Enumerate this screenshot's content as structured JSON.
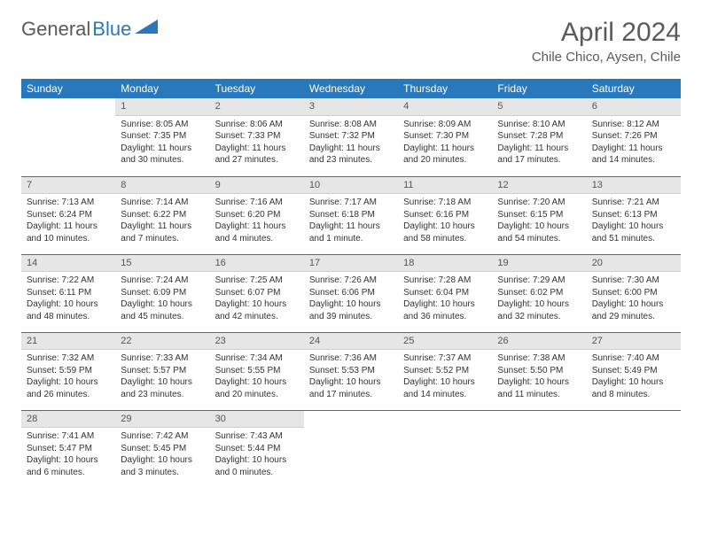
{
  "brand": {
    "part1": "General",
    "part2": "Blue"
  },
  "title": "April 2024",
  "location": "Chile Chico, Aysen, Chile",
  "colors": {
    "header_bg": "#2a78bc",
    "header_text": "#ffffff",
    "daynum_bg": "#e6e6e6",
    "text": "#333333",
    "brand_gray": "#5a5a5a",
    "brand_blue": "#2a78bc",
    "row_sep": "#2a78bc",
    "page_bg": "#ffffff"
  },
  "weekday_labels": [
    "Sunday",
    "Monday",
    "Tuesday",
    "Wednesday",
    "Thursday",
    "Friday",
    "Saturday"
  ],
  "weeks": [
    [
      null,
      {
        "n": "1",
        "sr": "8:05 AM",
        "ss": "7:35 PM",
        "dl": "11 hours and 30 minutes."
      },
      {
        "n": "2",
        "sr": "8:06 AM",
        "ss": "7:33 PM",
        "dl": "11 hours and 27 minutes."
      },
      {
        "n": "3",
        "sr": "8:08 AM",
        "ss": "7:32 PM",
        "dl": "11 hours and 23 minutes."
      },
      {
        "n": "4",
        "sr": "8:09 AM",
        "ss": "7:30 PM",
        "dl": "11 hours and 20 minutes."
      },
      {
        "n": "5",
        "sr": "8:10 AM",
        "ss": "7:28 PM",
        "dl": "11 hours and 17 minutes."
      },
      {
        "n": "6",
        "sr": "8:12 AM",
        "ss": "7:26 PM",
        "dl": "11 hours and 14 minutes."
      }
    ],
    [
      {
        "n": "7",
        "sr": "7:13 AM",
        "ss": "6:24 PM",
        "dl": "11 hours and 10 minutes."
      },
      {
        "n": "8",
        "sr": "7:14 AM",
        "ss": "6:22 PM",
        "dl": "11 hours and 7 minutes."
      },
      {
        "n": "9",
        "sr": "7:16 AM",
        "ss": "6:20 PM",
        "dl": "11 hours and 4 minutes."
      },
      {
        "n": "10",
        "sr": "7:17 AM",
        "ss": "6:18 PM",
        "dl": "11 hours and 1 minute."
      },
      {
        "n": "11",
        "sr": "7:18 AM",
        "ss": "6:16 PM",
        "dl": "10 hours and 58 minutes."
      },
      {
        "n": "12",
        "sr": "7:20 AM",
        "ss": "6:15 PM",
        "dl": "10 hours and 54 minutes."
      },
      {
        "n": "13",
        "sr": "7:21 AM",
        "ss": "6:13 PM",
        "dl": "10 hours and 51 minutes."
      }
    ],
    [
      {
        "n": "14",
        "sr": "7:22 AM",
        "ss": "6:11 PM",
        "dl": "10 hours and 48 minutes."
      },
      {
        "n": "15",
        "sr": "7:24 AM",
        "ss": "6:09 PM",
        "dl": "10 hours and 45 minutes."
      },
      {
        "n": "16",
        "sr": "7:25 AM",
        "ss": "6:07 PM",
        "dl": "10 hours and 42 minutes."
      },
      {
        "n": "17",
        "sr": "7:26 AM",
        "ss": "6:06 PM",
        "dl": "10 hours and 39 minutes."
      },
      {
        "n": "18",
        "sr": "7:28 AM",
        "ss": "6:04 PM",
        "dl": "10 hours and 36 minutes."
      },
      {
        "n": "19",
        "sr": "7:29 AM",
        "ss": "6:02 PM",
        "dl": "10 hours and 32 minutes."
      },
      {
        "n": "20",
        "sr": "7:30 AM",
        "ss": "6:00 PM",
        "dl": "10 hours and 29 minutes."
      }
    ],
    [
      {
        "n": "21",
        "sr": "7:32 AM",
        "ss": "5:59 PM",
        "dl": "10 hours and 26 minutes."
      },
      {
        "n": "22",
        "sr": "7:33 AM",
        "ss": "5:57 PM",
        "dl": "10 hours and 23 minutes."
      },
      {
        "n": "23",
        "sr": "7:34 AM",
        "ss": "5:55 PM",
        "dl": "10 hours and 20 minutes."
      },
      {
        "n": "24",
        "sr": "7:36 AM",
        "ss": "5:53 PM",
        "dl": "10 hours and 17 minutes."
      },
      {
        "n": "25",
        "sr": "7:37 AM",
        "ss": "5:52 PM",
        "dl": "10 hours and 14 minutes."
      },
      {
        "n": "26",
        "sr": "7:38 AM",
        "ss": "5:50 PM",
        "dl": "10 hours and 11 minutes."
      },
      {
        "n": "27",
        "sr": "7:40 AM",
        "ss": "5:49 PM",
        "dl": "10 hours and 8 minutes."
      }
    ],
    [
      {
        "n": "28",
        "sr": "7:41 AM",
        "ss": "5:47 PM",
        "dl": "10 hours and 6 minutes."
      },
      {
        "n": "29",
        "sr": "7:42 AM",
        "ss": "5:45 PM",
        "dl": "10 hours and 3 minutes."
      },
      {
        "n": "30",
        "sr": "7:43 AM",
        "ss": "5:44 PM",
        "dl": "10 hours and 0 minutes."
      },
      null,
      null,
      null,
      null
    ]
  ],
  "labels": {
    "sunrise": "Sunrise: ",
    "sunset": "Sunset: ",
    "daylight": "Daylight: "
  }
}
